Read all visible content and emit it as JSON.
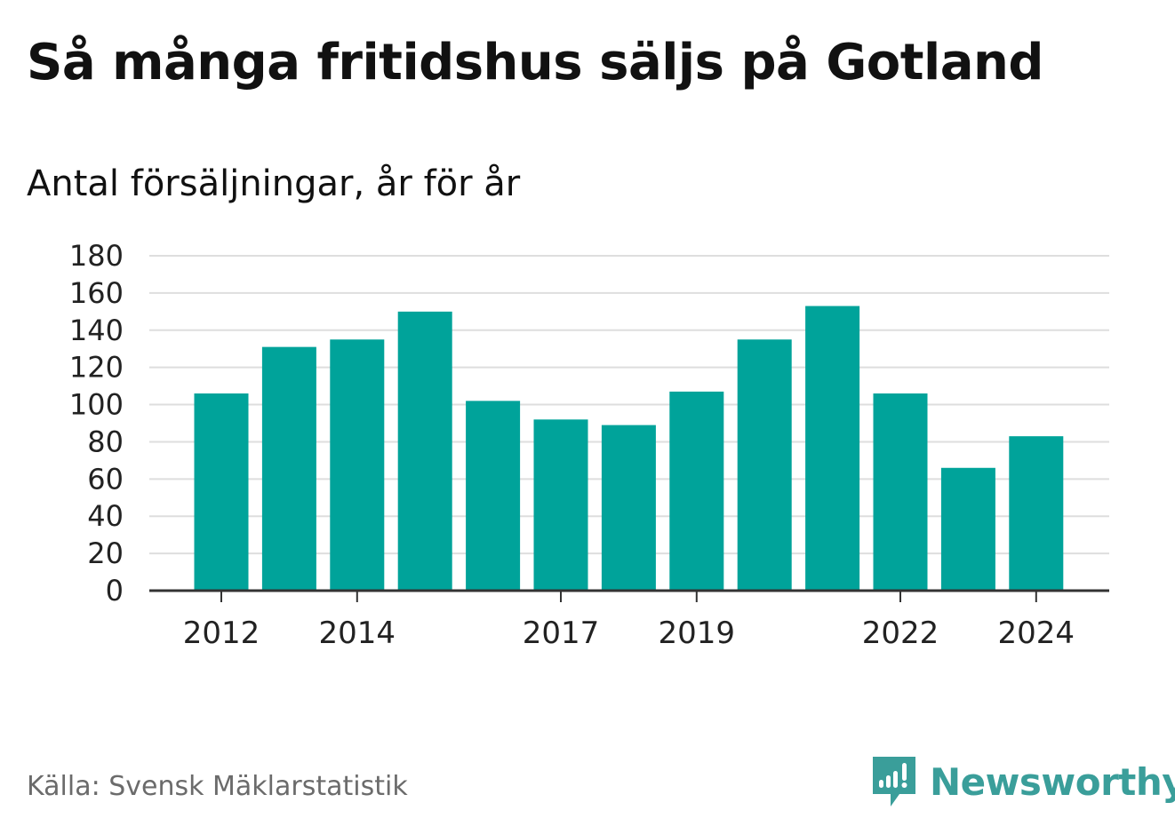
{
  "header": {
    "title": "Så många fritidshus säljs på Gotland",
    "subtitle": "Antal försäljningar, år för år"
  },
  "footer": {
    "source": "Källa: Svensk Mäklarstatistik",
    "brand": "Newsworthy",
    "brand_icon": "newsworthy-logo-icon",
    "brand_color": "#3a9e9a"
  },
  "chart_data": {
    "type": "bar",
    "title": "Så många fritidshus säljs på Gotland",
    "subtitle": "Antal försäljningar, år för år",
    "categories": [
      "2012",
      "2013",
      "2014",
      "2015",
      "2016",
      "2017",
      "2018",
      "2019",
      "2020",
      "2021",
      "2022",
      "2023",
      "2024"
    ],
    "values": [
      106,
      131,
      135,
      150,
      102,
      92,
      89,
      107,
      135,
      153,
      106,
      66,
      83
    ],
    "x_tick_labels": [
      "2012",
      "2014",
      "2017",
      "2019",
      "2022",
      "2024"
    ],
    "y_ticks": [
      0,
      20,
      40,
      60,
      80,
      100,
      120,
      140,
      160,
      180
    ],
    "ylim": [
      0,
      180
    ],
    "xlabel": "",
    "ylabel": "",
    "grid": true,
    "legend": "none",
    "bar_color": "#00a39a",
    "grid_color": "#dedede",
    "axis_color": "#333333"
  }
}
